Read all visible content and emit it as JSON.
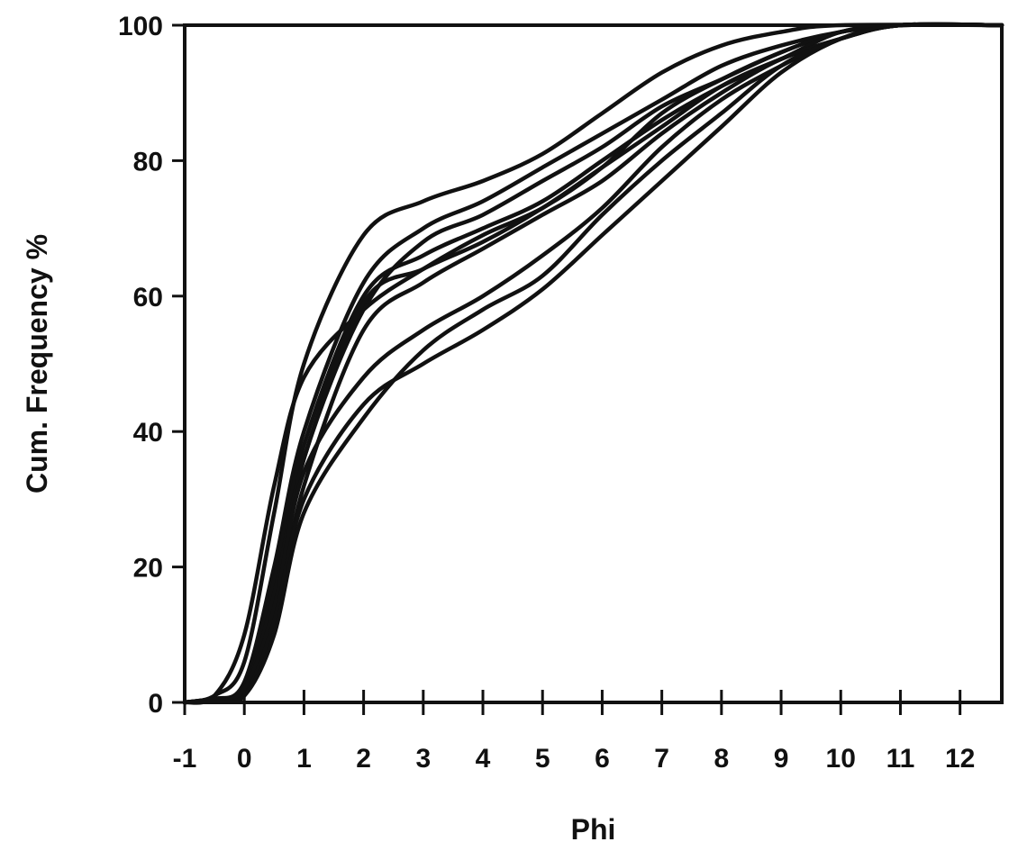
{
  "chart_data": {
    "type": "line",
    "title": "",
    "xlabel": "Phi",
    "ylabel": "Cum. Frequency %",
    "xlim": [
      -1,
      12.7
    ],
    "ylim": [
      0,
      100
    ],
    "xticks": [
      -1,
      0,
      1,
      2,
      3,
      4,
      5,
      6,
      7,
      8,
      9,
      10,
      11,
      12
    ],
    "yticks": [
      0,
      20,
      40,
      60,
      80,
      100
    ],
    "grid": false,
    "legend": "none",
    "line_color": "#111111",
    "series": [
      {
        "points": [
          [
            -1,
            0
          ],
          [
            -0.5,
            1
          ],
          [
            0,
            10
          ],
          [
            0.5,
            32
          ],
          [
            1,
            48
          ],
          [
            2,
            58
          ],
          [
            3,
            64
          ],
          [
            4,
            69
          ],
          [
            5,
            73
          ],
          [
            6,
            79
          ],
          [
            7,
            87
          ],
          [
            8,
            92
          ],
          [
            9,
            96
          ],
          [
            10,
            99
          ],
          [
            11,
            100
          ],
          [
            12.7,
            100
          ]
        ]
      },
      {
        "points": [
          [
            -1,
            0
          ],
          [
            -0.5,
            1
          ],
          [
            0,
            6
          ],
          [
            0.5,
            28
          ],
          [
            1,
            50
          ],
          [
            2,
            69
          ],
          [
            3,
            74
          ],
          [
            4,
            77
          ],
          [
            5,
            81
          ],
          [
            6,
            87
          ],
          [
            7,
            93
          ],
          [
            8,
            97
          ],
          [
            9,
            99
          ],
          [
            10,
            100
          ],
          [
            12.7,
            100
          ]
        ]
      },
      {
        "points": [
          [
            -1,
            0
          ],
          [
            -0.5,
            0.5
          ],
          [
            0,
            3
          ],
          [
            0.5,
            20
          ],
          [
            1,
            40
          ],
          [
            2,
            62
          ],
          [
            3,
            70
          ],
          [
            4,
            74
          ],
          [
            5,
            79
          ],
          [
            6,
            84
          ],
          [
            7,
            89
          ],
          [
            8,
            94
          ],
          [
            9,
            97
          ],
          [
            10,
            99
          ],
          [
            11,
            100
          ],
          [
            12.7,
            100
          ]
        ]
      },
      {
        "points": [
          [
            -1,
            0
          ],
          [
            -0.5,
            0.5
          ],
          [
            0,
            2
          ],
          [
            0.5,
            15
          ],
          [
            1,
            36
          ],
          [
            2,
            58
          ],
          [
            3,
            68
          ],
          [
            4,
            72
          ],
          [
            5,
            77
          ],
          [
            6,
            82
          ],
          [
            7,
            88
          ],
          [
            8,
            92
          ],
          [
            9,
            96
          ],
          [
            10,
            99
          ],
          [
            11,
            100
          ],
          [
            12.7,
            100
          ]
        ]
      },
      {
        "points": [
          [
            -1,
            0
          ],
          [
            -0.5,
            0.5
          ],
          [
            0,
            2
          ],
          [
            0.5,
            18
          ],
          [
            1,
            38
          ],
          [
            2,
            60
          ],
          [
            3,
            66
          ],
          [
            4,
            70
          ],
          [
            5,
            74
          ],
          [
            6,
            80
          ],
          [
            7,
            86
          ],
          [
            8,
            91
          ],
          [
            9,
            95
          ],
          [
            10,
            99
          ],
          [
            11,
            100
          ],
          [
            12.7,
            100
          ]
        ]
      },
      {
        "points": [
          [
            -1,
            0
          ],
          [
            -0.5,
            0.5
          ],
          [
            0,
            2
          ],
          [
            0.5,
            16
          ],
          [
            1,
            36
          ],
          [
            2,
            59
          ],
          [
            3,
            64
          ],
          [
            4,
            68
          ],
          [
            5,
            73
          ],
          [
            6,
            79
          ],
          [
            7,
            85
          ],
          [
            8,
            91
          ],
          [
            9,
            95
          ],
          [
            10,
            98
          ],
          [
            11,
            100
          ],
          [
            12.7,
            100
          ]
        ]
      },
      {
        "points": [
          [
            -1,
            0
          ],
          [
            -0.5,
            0.5
          ],
          [
            0,
            1
          ],
          [
            0.5,
            12
          ],
          [
            1,
            32
          ],
          [
            2,
            55
          ],
          [
            3,
            62
          ],
          [
            4,
            67
          ],
          [
            5,
            72
          ],
          [
            6,
            77
          ],
          [
            7,
            84
          ],
          [
            8,
            90
          ],
          [
            9,
            95
          ],
          [
            10,
            98
          ],
          [
            11,
            100
          ],
          [
            12.7,
            100
          ]
        ]
      },
      {
        "points": [
          [
            -1,
            0
          ],
          [
            -0.5,
            0.5
          ],
          [
            0,
            2
          ],
          [
            0.5,
            14
          ],
          [
            1,
            34
          ],
          [
            2,
            48
          ],
          [
            3,
            55
          ],
          [
            4,
            60
          ],
          [
            5,
            66
          ],
          [
            6,
            73
          ],
          [
            7,
            82
          ],
          [
            8,
            89
          ],
          [
            9,
            94
          ],
          [
            10,
            98
          ],
          [
            11,
            100
          ],
          [
            12.7,
            100
          ]
        ]
      },
      {
        "points": [
          [
            -1,
            0
          ],
          [
            -0.5,
            0.5
          ],
          [
            0,
            1
          ],
          [
            0.5,
            12
          ],
          [
            1,
            30
          ],
          [
            2,
            44
          ],
          [
            3,
            50
          ],
          [
            4,
            55
          ],
          [
            5,
            61
          ],
          [
            6,
            69
          ],
          [
            7,
            77
          ],
          [
            8,
            85
          ],
          [
            9,
            93
          ],
          [
            10,
            98
          ],
          [
            11,
            100
          ],
          [
            12.7,
            100
          ]
        ]
      },
      {
        "points": [
          [
            -1,
            0
          ],
          [
            -0.5,
            0.5
          ],
          [
            0,
            1
          ],
          [
            0.5,
            10
          ],
          [
            1,
            28
          ],
          [
            2,
            42
          ],
          [
            3,
            52
          ],
          [
            4,
            58
          ],
          [
            5,
            63
          ],
          [
            6,
            72
          ],
          [
            7,
            80
          ],
          [
            8,
            87
          ],
          [
            9,
            94
          ],
          [
            10,
            98
          ],
          [
            11,
            100
          ],
          [
            12.7,
            100
          ]
        ]
      }
    ]
  }
}
